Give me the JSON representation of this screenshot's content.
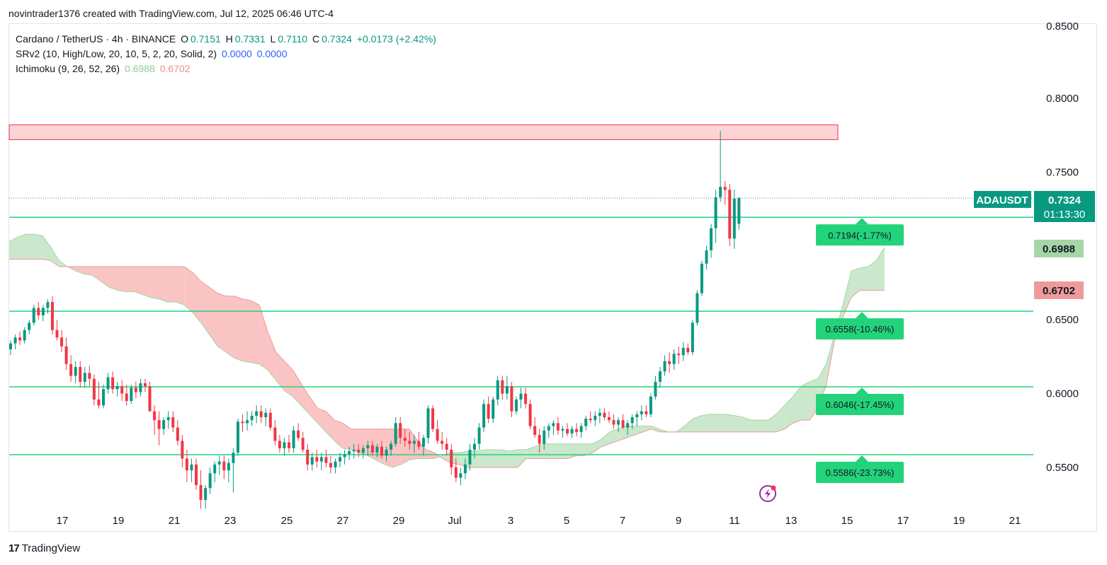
{
  "caption": "novintrader1376 created with TradingView.com, Jul 12, 2025 06:46 UTC-4",
  "legend": {
    "symbol": "Cardano / TetherUS · 4h · BINANCE",
    "o_label": "O",
    "o": "0.7151",
    "h_label": "H",
    "h": "0.7331",
    "l_label": "L",
    "l": "0.7110",
    "c_label": "C",
    "c": "0.7324",
    "change": "+0.0173 (+2.42%)",
    "srv2": "SRv2 (10, High/Low, 20, 10, 5, 2, 20, Solid, 2)",
    "srv2_a": "0.0000",
    "srv2_b": "0.0000",
    "ichimoku": "Ichimoku (9, 26, 52, 26)",
    "ichimoku_a": "0.6988",
    "ichimoku_b": "0.6702"
  },
  "brand": {
    "logo": "17",
    "name": "TradingView"
  },
  "chart_data": {
    "type": "candlestick",
    "symbol": "ADAUSDT",
    "interval": "4h",
    "ylim": [
      0.52,
      0.86
    ],
    "y_ticks": [
      "0.5500",
      "0.6000",
      "0.6500",
      "0.7500",
      "0.8000"
    ],
    "y_tick_top_partial": "0.8500",
    "x_ticks": [
      "17",
      "19",
      "21",
      "23",
      "25",
      "27",
      "29",
      "Jul",
      "3",
      "5",
      "7",
      "9",
      "11",
      "13",
      "15",
      "17",
      "19",
      "21"
    ],
    "last_price": {
      "label": "ADAUSDT",
      "value": "0.7324",
      "countdown": "01:13:30"
    },
    "ichimoku_labels": {
      "span_a": "0.6988",
      "span_b": "0.6702"
    },
    "resistance_zone": [
      0.772,
      0.782
    ],
    "support_levels": [
      {
        "price": 0.7194,
        "label": "0.7194(-1.77%)"
      },
      {
        "price": 0.6558,
        "label": "0.6558(-10.46%)"
      },
      {
        "price": 0.6046,
        "label": "0.6046(-17.45%)"
      },
      {
        "price": 0.5586,
        "label": "0.5586(-23.73%)"
      }
    ],
    "candles": [
      [
        0.63,
        0.636,
        0.626,
        0.634
      ],
      [
        0.634,
        0.64,
        0.63,
        0.638
      ],
      [
        0.638,
        0.642,
        0.633,
        0.636
      ],
      [
        0.636,
        0.645,
        0.634,
        0.643
      ],
      [
        0.643,
        0.65,
        0.64,
        0.648
      ],
      [
        0.648,
        0.66,
        0.646,
        0.658
      ],
      [
        0.658,
        0.662,
        0.65,
        0.653
      ],
      [
        0.653,
        0.66,
        0.649,
        0.658
      ],
      [
        0.658,
        0.664,
        0.654,
        0.662
      ],
      [
        0.662,
        0.666,
        0.64,
        0.643
      ],
      [
        0.643,
        0.65,
        0.636,
        0.638
      ],
      [
        0.638,
        0.643,
        0.628,
        0.632
      ],
      [
        0.632,
        0.638,
        0.616,
        0.62
      ],
      [
        0.62,
        0.626,
        0.608,
        0.612
      ],
      [
        0.612,
        0.622,
        0.607,
        0.618
      ],
      [
        0.618,
        0.622,
        0.604,
        0.608
      ],
      [
        0.608,
        0.618,
        0.604,
        0.614
      ],
      [
        0.614,
        0.619,
        0.605,
        0.61
      ],
      [
        0.61,
        0.613,
        0.592,
        0.596
      ],
      [
        0.596,
        0.608,
        0.59,
        0.592
      ],
      [
        0.592,
        0.606,
        0.59,
        0.603
      ],
      [
        0.603,
        0.614,
        0.6,
        0.611
      ],
      [
        0.611,
        0.615,
        0.6,
        0.603
      ],
      [
        0.603,
        0.608,
        0.598,
        0.605
      ],
      [
        0.605,
        0.609,
        0.595,
        0.6
      ],
      [
        0.6,
        0.606,
        0.592,
        0.595
      ],
      [
        0.595,
        0.606,
        0.593,
        0.604
      ],
      [
        0.604,
        0.608,
        0.597,
        0.601
      ],
      [
        0.601,
        0.61,
        0.598,
        0.607
      ],
      [
        0.607,
        0.61,
        0.601,
        0.605
      ],
      [
        0.605,
        0.608,
        0.59,
        0.588
      ],
      [
        0.588,
        0.592,
        0.572,
        0.582
      ],
      [
        0.582,
        0.588,
        0.565,
        0.576
      ],
      [
        0.576,
        0.584,
        0.572,
        0.582
      ],
      [
        0.582,
        0.588,
        0.576,
        0.584
      ],
      [
        0.584,
        0.588,
        0.574,
        0.577
      ],
      [
        0.577,
        0.582,
        0.565,
        0.568
      ],
      [
        0.568,
        0.572,
        0.55,
        0.556
      ],
      [
        0.556,
        0.562,
        0.54,
        0.548
      ],
      [
        0.548,
        0.556,
        0.54,
        0.552
      ],
      [
        0.552,
        0.556,
        0.535,
        0.538
      ],
      [
        0.538,
        0.548,
        0.522,
        0.528
      ],
      [
        0.528,
        0.538,
        0.522,
        0.536
      ],
      [
        0.536,
        0.55,
        0.532,
        0.546
      ],
      [
        0.546,
        0.554,
        0.54,
        0.552
      ],
      [
        0.552,
        0.558,
        0.545,
        0.554
      ],
      [
        0.554,
        0.558,
        0.542,
        0.548
      ],
      [
        0.548,
        0.556,
        0.54,
        0.553
      ],
      [
        0.553,
        0.563,
        0.533,
        0.56
      ],
      [
        0.56,
        0.583,
        0.558,
        0.581
      ],
      [
        0.581,
        0.586,
        0.574,
        0.58
      ],
      [
        0.58,
        0.588,
        0.575,
        0.582
      ],
      [
        0.582,
        0.588,
        0.578,
        0.585
      ],
      [
        0.585,
        0.592,
        0.58,
        0.588
      ],
      [
        0.588,
        0.592,
        0.58,
        0.584
      ],
      [
        0.584,
        0.59,
        0.578,
        0.587
      ],
      [
        0.587,
        0.59,
        0.575,
        0.577
      ],
      [
        0.577,
        0.582,
        0.565,
        0.568
      ],
      [
        0.568,
        0.572,
        0.56,
        0.563
      ],
      [
        0.563,
        0.57,
        0.558,
        0.567
      ],
      [
        0.567,
        0.572,
        0.56,
        0.563
      ],
      [
        0.563,
        0.578,
        0.56,
        0.575
      ],
      [
        0.575,
        0.58,
        0.568,
        0.57
      ],
      [
        0.57,
        0.574,
        0.56,
        0.562
      ],
      [
        0.562,
        0.566,
        0.548,
        0.552
      ],
      [
        0.552,
        0.56,
        0.548,
        0.557
      ],
      [
        0.557,
        0.562,
        0.55,
        0.554
      ],
      [
        0.554,
        0.56,
        0.548,
        0.557
      ],
      [
        0.557,
        0.562,
        0.55,
        0.553
      ],
      [
        0.553,
        0.558,
        0.546,
        0.55
      ],
      [
        0.55,
        0.556,
        0.546,
        0.554
      ],
      [
        0.554,
        0.56,
        0.55,
        0.557
      ],
      [
        0.557,
        0.562,
        0.552,
        0.559
      ],
      [
        0.559,
        0.564,
        0.555,
        0.561
      ],
      [
        0.561,
        0.566,
        0.556,
        0.562
      ],
      [
        0.562,
        0.566,
        0.557,
        0.56
      ],
      [
        0.56,
        0.565,
        0.556,
        0.563
      ],
      [
        0.563,
        0.568,
        0.558,
        0.565
      ],
      [
        0.565,
        0.568,
        0.558,
        0.56
      ],
      [
        0.56,
        0.566,
        0.557,
        0.564
      ],
      [
        0.564,
        0.568,
        0.556,
        0.558
      ],
      [
        0.558,
        0.564,
        0.554,
        0.562
      ],
      [
        0.562,
        0.568,
        0.558,
        0.566
      ],
      [
        0.566,
        0.584,
        0.564,
        0.58
      ],
      [
        0.58,
        0.584,
        0.566,
        0.57
      ],
      [
        0.57,
        0.576,
        0.564,
        0.568
      ],
      [
        0.568,
        0.574,
        0.562,
        0.566
      ],
      [
        0.566,
        0.572,
        0.56,
        0.568
      ],
      [
        0.568,
        0.574,
        0.562,
        0.564
      ],
      [
        0.564,
        0.572,
        0.558,
        0.57
      ],
      [
        0.57,
        0.592,
        0.566,
        0.59
      ],
      [
        0.59,
        0.592,
        0.574,
        0.576
      ],
      [
        0.576,
        0.582,
        0.566,
        0.568
      ],
      [
        0.568,
        0.574,
        0.562,
        0.566
      ],
      [
        0.566,
        0.57,
        0.558,
        0.562
      ],
      [
        0.562,
        0.566,
        0.545,
        0.55
      ],
      [
        0.55,
        0.556,
        0.54,
        0.543
      ],
      [
        0.543,
        0.55,
        0.538,
        0.546
      ],
      [
        0.546,
        0.556,
        0.542,
        0.552
      ],
      [
        0.552,
        0.566,
        0.548,
        0.562
      ],
      [
        0.562,
        0.57,
        0.556,
        0.566
      ],
      [
        0.566,
        0.58,
        0.562,
        0.577
      ],
      [
        0.577,
        0.596,
        0.574,
        0.593
      ],
      [
        0.593,
        0.598,
        0.58,
        0.583
      ],
      [
        0.583,
        0.598,
        0.58,
        0.596
      ],
      [
        0.596,
        0.612,
        0.592,
        0.609
      ],
      [
        0.609,
        0.612,
        0.596,
        0.6
      ],
      [
        0.6,
        0.612,
        0.596,
        0.605
      ],
      [
        0.605,
        0.608,
        0.584,
        0.588
      ],
      [
        0.588,
        0.598,
        0.586,
        0.596
      ],
      [
        0.596,
        0.604,
        0.59,
        0.6
      ],
      [
        0.6,
        0.604,
        0.59,
        0.593
      ],
      [
        0.593,
        0.596,
        0.576,
        0.578
      ],
      [
        0.578,
        0.584,
        0.57,
        0.572
      ],
      [
        0.572,
        0.576,
        0.56,
        0.566
      ],
      [
        0.566,
        0.578,
        0.562,
        0.575
      ],
      [
        0.575,
        0.58,
        0.57,
        0.578
      ],
      [
        0.578,
        0.582,
        0.572,
        0.58
      ],
      [
        0.58,
        0.584,
        0.572,
        0.575
      ],
      [
        0.575,
        0.578,
        0.57,
        0.576
      ],
      [
        0.576,
        0.58,
        0.571,
        0.573
      ],
      [
        0.573,
        0.578,
        0.57,
        0.576
      ],
      [
        0.576,
        0.58,
        0.571,
        0.574
      ],
      [
        0.574,
        0.58,
        0.57,
        0.578
      ],
      [
        0.578,
        0.585,
        0.575,
        0.583
      ],
      [
        0.583,
        0.588,
        0.58,
        0.582
      ],
      [
        0.582,
        0.588,
        0.578,
        0.585
      ],
      [
        0.585,
        0.59,
        0.58,
        0.587
      ],
      [
        0.587,
        0.59,
        0.582,
        0.584
      ],
      [
        0.584,
        0.588,
        0.58,
        0.582
      ],
      [
        0.582,
        0.586,
        0.576,
        0.579
      ],
      [
        0.579,
        0.584,
        0.574,
        0.582
      ],
      [
        0.582,
        0.586,
        0.576,
        0.577
      ],
      [
        0.577,
        0.582,
        0.572,
        0.58
      ],
      [
        0.58,
        0.586,
        0.576,
        0.584
      ],
      [
        0.584,
        0.588,
        0.578,
        0.586
      ],
      [
        0.586,
        0.592,
        0.582,
        0.588
      ],
      [
        0.588,
        0.592,
        0.584,
        0.586
      ],
      [
        0.586,
        0.6,
        0.584,
        0.598
      ],
      [
        0.598,
        0.612,
        0.596,
        0.608
      ],
      [
        0.608,
        0.618,
        0.604,
        0.615
      ],
      [
        0.615,
        0.626,
        0.612,
        0.622
      ],
      [
        0.622,
        0.628,
        0.614,
        0.62
      ],
      [
        0.62,
        0.63,
        0.616,
        0.627
      ],
      [
        0.627,
        0.632,
        0.62,
        0.626
      ],
      [
        0.626,
        0.635,
        0.622,
        0.631
      ],
      [
        0.631,
        0.634,
        0.626,
        0.628
      ],
      [
        0.628,
        0.65,
        0.626,
        0.648
      ],
      [
        0.648,
        0.67,
        0.646,
        0.668
      ],
      [
        0.668,
        0.69,
        0.666,
        0.688
      ],
      [
        0.688,
        0.7,
        0.684,
        0.697
      ],
      [
        0.697,
        0.715,
        0.692,
        0.712
      ],
      [
        0.712,
        0.738,
        0.702,
        0.733
      ],
      [
        0.733,
        0.778,
        0.73,
        0.74
      ],
      [
        0.74,
        0.744,
        0.728,
        0.738
      ],
      [
        0.738,
        0.742,
        0.7,
        0.705
      ],
      [
        0.705,
        0.738,
        0.698,
        0.732
      ],
      [
        0.715,
        0.733,
        0.711,
        0.7324
      ]
    ],
    "ichimoku_cloud": [
      [
        0.703,
        0.691
      ],
      [
        0.706,
        0.691
      ],
      [
        0.708,
        0.691
      ],
      [
        0.708,
        0.691
      ],
      [
        0.707,
        0.691
      ],
      [
        0.699,
        0.69
      ],
      [
        0.69,
        0.686
      ],
      [
        0.686,
        0.686
      ],
      [
        0.683,
        0.686
      ],
      [
        0.681,
        0.686
      ],
      [
        0.68,
        0.686
      ],
      [
        0.676,
        0.686
      ],
      [
        0.672,
        0.686
      ],
      [
        0.67,
        0.686
      ],
      [
        0.669,
        0.686
      ],
      [
        0.669,
        0.686
      ],
      [
        0.667,
        0.686
      ],
      [
        0.665,
        0.686
      ],
      [
        0.664,
        0.686
      ],
      [
        0.662,
        0.686
      ],
      [
        0.662,
        0.686
      ],
      [
        0.66,
        0.686
      ],
      [
        0.655,
        0.682
      ],
      [
        0.648,
        0.676
      ],
      [
        0.64,
        0.672
      ],
      [
        0.632,
        0.668
      ],
      [
        0.628,
        0.666
      ],
      [
        0.624,
        0.666
      ],
      [
        0.622,
        0.664
      ],
      [
        0.621,
        0.663
      ],
      [
        0.62,
        0.66
      ],
      [
        0.616,
        0.642
      ],
      [
        0.609,
        0.628
      ],
      [
        0.602,
        0.622
      ],
      [
        0.598,
        0.616
      ],
      [
        0.592,
        0.607
      ],
      [
        0.586,
        0.598
      ],
      [
        0.58,
        0.59
      ],
      [
        0.574,
        0.588
      ],
      [
        0.568,
        0.582
      ],
      [
        0.563,
        0.58
      ],
      [
        0.562,
        0.576
      ],
      [
        0.56,
        0.576
      ],
      [
        0.558,
        0.576
      ],
      [
        0.555,
        0.576
      ],
      [
        0.552,
        0.576
      ],
      [
        0.55,
        0.576
      ],
      [
        0.552,
        0.576
      ],
      [
        0.555,
        0.576
      ],
      [
        0.556,
        0.568
      ],
      [
        0.556,
        0.562
      ],
      [
        0.556,
        0.56
      ],
      [
        0.558,
        0.556
      ],
      [
        0.56,
        0.553
      ],
      [
        0.56,
        0.552
      ],
      [
        0.561,
        0.55
      ],
      [
        0.561,
        0.55
      ],
      [
        0.562,
        0.55
      ],
      [
        0.562,
        0.55
      ],
      [
        0.562,
        0.55
      ],
      [
        0.561,
        0.55
      ],
      [
        0.562,
        0.55
      ],
      [
        0.562,
        0.556
      ],
      [
        0.564,
        0.556
      ],
      [
        0.566,
        0.556
      ],
      [
        0.566,
        0.556
      ],
      [
        0.566,
        0.556
      ],
      [
        0.566,
        0.556
      ],
      [
        0.566,
        0.558
      ],
      [
        0.566,
        0.558
      ],
      [
        0.566,
        0.56
      ],
      [
        0.569,
        0.564
      ],
      [
        0.574,
        0.566
      ],
      [
        0.576,
        0.568
      ],
      [
        0.578,
        0.57
      ],
      [
        0.578,
        0.572
      ],
      [
        0.578,
        0.574
      ],
      [
        0.578,
        0.576
      ],
      [
        0.576,
        0.574
      ],
      [
        0.574,
        0.574
      ],
      [
        0.574,
        0.574
      ],
      [
        0.578,
        0.574
      ],
      [
        0.583,
        0.574
      ],
      [
        0.585,
        0.574
      ],
      [
        0.586,
        0.574
      ],
      [
        0.586,
        0.574
      ],
      [
        0.586,
        0.574
      ],
      [
        0.585,
        0.574
      ],
      [
        0.584,
        0.574
      ],
      [
        0.582,
        0.574
      ],
      [
        0.582,
        0.574
      ],
      [
        0.582,
        0.574
      ],
      [
        0.586,
        0.574
      ],
      [
        0.592,
        0.576
      ],
      [
        0.598,
        0.58
      ],
      [
        0.605,
        0.582
      ],
      [
        0.608,
        0.582
      ],
      [
        0.61,
        0.59
      ],
      [
        0.62,
        0.606
      ],
      [
        0.64,
        0.636
      ],
      [
        0.66,
        0.652
      ],
      [
        0.683,
        0.665
      ],
      [
        0.685,
        0.67
      ],
      [
        0.686,
        0.67
      ],
      [
        0.69,
        0.67
      ],
      [
        0.699,
        0.67
      ]
    ],
    "cloud_start_x": 0
  }
}
